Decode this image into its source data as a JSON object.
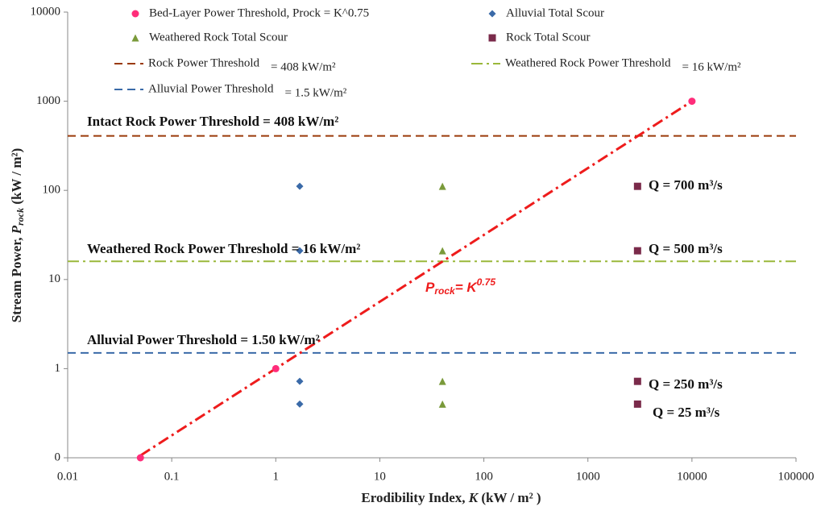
{
  "chart_data": {
    "type": "scatter",
    "xlabel": [
      "Erodibility Index, ",
      "K",
      " (kW / m² )"
    ],
    "ylabel": [
      "Stream Power, ",
      "P",
      "rock",
      "  (kW / m²)"
    ],
    "log_x": true,
    "log_y": true,
    "xlim": [
      0.01,
      100000
    ],
    "ylim": [
      0.1,
      10000
    ],
    "xticks": [
      0.01,
      0.1,
      1,
      10,
      100,
      1000,
      10000,
      100000
    ],
    "yticks": [
      {
        "value": 0.1,
        "label": "0"
      },
      1,
      10,
      100,
      1000,
      10000
    ],
    "series": [
      {
        "name": "Bed-Layer Power Threshold, Prock = K^0.75",
        "type": "scatter",
        "marker": "circle",
        "color": "#ff2d7a",
        "x": [
          0.05,
          1,
          10000
        ],
        "values": [
          0.1,
          1,
          1000
        ]
      },
      {
        "name": "Alluvial Total Scour",
        "type": "scatter",
        "marker": "diamond",
        "color": "#3a6aa8",
        "x": [
          1.7,
          1.7,
          1.7,
          1.7
        ],
        "values": [
          0.4,
          0.72,
          21,
          111
        ]
      },
      {
        "name": "Weathered Rock Total Scour",
        "type": "scatter",
        "marker": "triangle",
        "color": "#7a9a3a",
        "x": [
          40,
          40,
          40,
          40
        ],
        "values": [
          0.4,
          0.72,
          21,
          111
        ]
      },
      {
        "name": "Rock Total Scour",
        "type": "scatter",
        "marker": "square",
        "color": "#7a2a4a",
        "x": [
          3000,
          3000,
          3000,
          3000
        ],
        "values": [
          0.4,
          0.72,
          21,
          111
        ]
      },
      {
        "name": "Rock Power Threshold",
        "legend_value_label": "= 408 kW/m²",
        "type": "hline",
        "dash": "10 6",
        "color": "#9a3a0a",
        "value": 408
      },
      {
        "name": "Weathered Rock Power Threshold",
        "legend_value_label": "= 16 kW/m²",
        "type": "hline",
        "dash": "14 5 3 5",
        "color": "#9ab83a",
        "value": 16
      },
      {
        "name": "Alluvial Power Threshold",
        "legend_value_label": "= 1.5 kW/m²",
        "type": "hline",
        "dash": "10 6",
        "color": "#3a6aa8",
        "value": 1.5
      },
      {
        "name": "Prock = K^0.75 line",
        "type": "line",
        "dash": "14 5 3 5",
        "color": "#ee1c1c",
        "x": [
          0.05,
          10000
        ],
        "values": [
          0.106,
          1000
        ]
      }
    ],
    "annotations": [
      "Intact Rock Power Threshold = 408 kW/m²",
      "Weathered Rock Power Threshold = 16 kW/m²",
      "Alluvial Power Threshold = 1.50 kW/m²",
      "Q = 700 m³/s",
      "Q = 500 m³/s",
      "Q = 250 m³/s",
      "Q = 25 m³/s"
    ],
    "curve_label": [
      "P",
      "rock",
      "= K",
      "0.75"
    ]
  }
}
